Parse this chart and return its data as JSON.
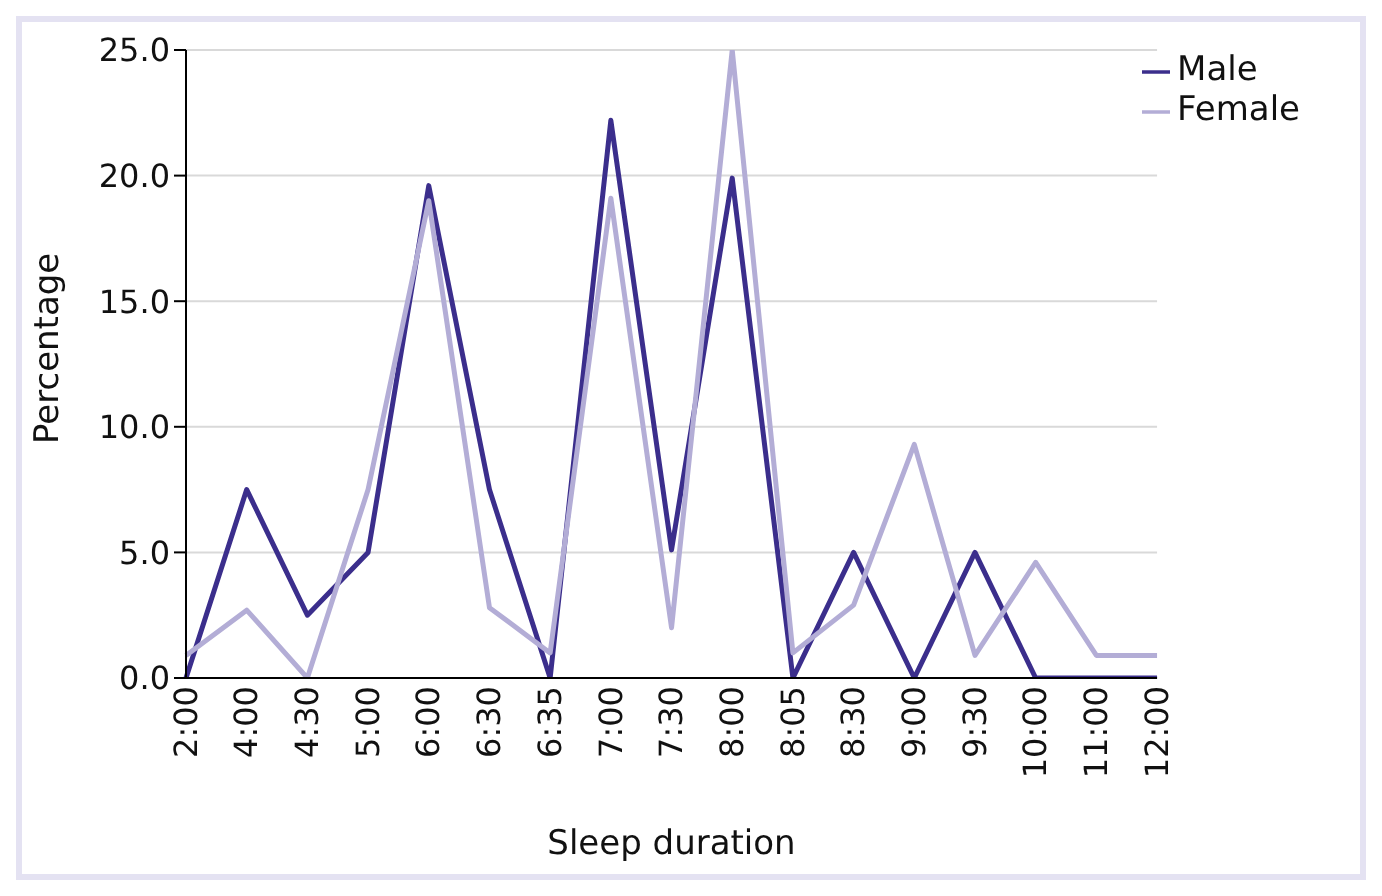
{
  "chart_data": {
    "type": "line",
    "xlabel": "Sleep duration",
    "ylabel": "Percentage",
    "categories": [
      "2:00",
      "4:00",
      "4:30",
      "5:00",
      "6:00",
      "6:30",
      "6:35",
      "7:00",
      "7:30",
      "8:00",
      "8:05",
      "8:30",
      "9:00",
      "9:30",
      "10:00",
      "11:00",
      "12:00"
    ],
    "series": [
      {
        "name": "Male",
        "color": "#3b2e8c",
        "values": [
          0,
          7.5,
          2.5,
          5.0,
          19.6,
          7.5,
          0,
          22.2,
          5.1,
          19.9,
          0,
          5.0,
          0,
          5.0,
          0,
          0,
          0
        ]
      },
      {
        "name": "Female",
        "color": "#b3add6",
        "values": [
          0.9,
          2.7,
          0,
          7.5,
          19.0,
          2.8,
          1.0,
          19.1,
          2.0,
          25.0,
          1.0,
          2.9,
          9.3,
          0.9,
          4.6,
          0.9,
          0.9
        ]
      }
    ],
    "ylim": [
      0,
      25
    ],
    "yticks": [
      {
        "value": 0,
        "label": "0.0"
      },
      {
        "value": 5,
        "label": "5.0"
      },
      {
        "value": 10,
        "label": "10.0"
      },
      {
        "value": 15,
        "label": "15.0"
      },
      {
        "value": 20,
        "label": "20.0"
      },
      {
        "value": 25,
        "label": "25.0"
      }
    ],
    "grid": "y",
    "legend": "top right",
    "marker": "none",
    "line_style": "solid"
  }
}
